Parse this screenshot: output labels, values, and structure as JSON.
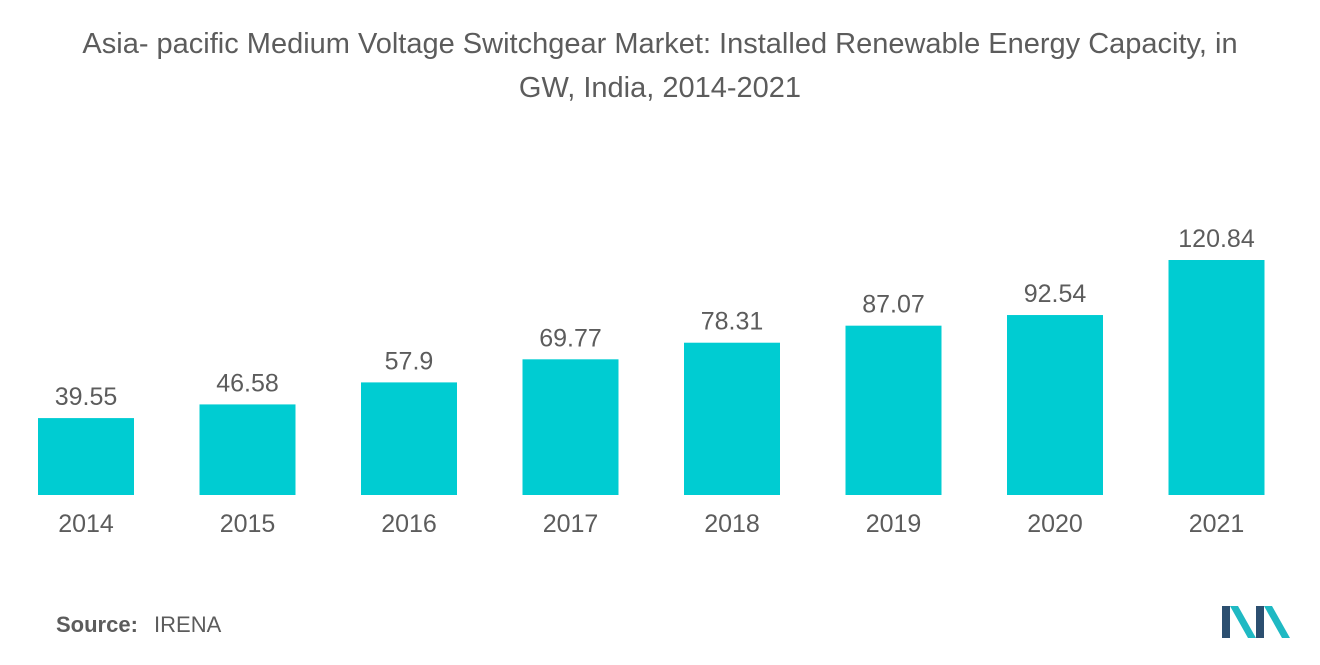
{
  "title_line1": "Asia- pacific Medium Voltage Switchgear Market: Installed Renewable Energy Capacity, in",
  "title_line2": "GW, India, 2014-2021",
  "source_label": "Source:",
  "source_value": "IRENA",
  "colors": {
    "bar": "#00ccd2",
    "text": "#5c5c5c",
    "logo_dark": "#2c4f70",
    "logo_teal": "#1fb9c3"
  },
  "logo_icon": "company-logo-icon",
  "chart_data": {
    "type": "bar",
    "categories": [
      "2014",
      "2015",
      "2016",
      "2017",
      "2018",
      "2019",
      "2020",
      "2021"
    ],
    "values": [
      39.55,
      46.58,
      57.9,
      69.77,
      78.31,
      87.07,
      92.54,
      120.84
    ],
    "value_labels": [
      "39.55",
      "46.58",
      "57.9",
      "69.77",
      "78.31",
      "87.07",
      "92.54",
      "120.84"
    ],
    "title": "Asia- pacific Medium Voltage Switchgear Market: Installed Renewable Energy Capacity, in GW, India, 2014-2021",
    "xlabel": "",
    "ylabel": "",
    "ylim": [
      0,
      120.84
    ],
    "grid": false,
    "legend": "none",
    "data_labels": true
  }
}
